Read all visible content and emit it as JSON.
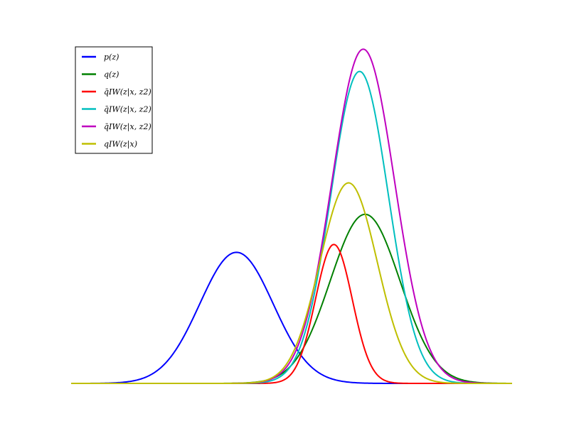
{
  "chart_data": {
    "type": "line",
    "title": "",
    "xlabel": "",
    "ylabel": "",
    "xlim": [
      -6,
      6
    ],
    "ylim": [
      0,
      1.3
    ],
    "grid": false,
    "axes_visible": false,
    "legend_position": "top-left",
    "series": [
      {
        "name": "p(z)",
        "color": "#0000ff",
        "mean": -1.5,
        "std": 1.0,
        "peak": 0.5
      },
      {
        "name": "q(z)",
        "color": "#008000",
        "mean": 2.0,
        "std": 0.95,
        "peak": 0.645
      },
      {
        "name": "q̄IW(z|x, z2)",
        "color": "#ff0000",
        "mean": 1.15,
        "std": 0.5,
        "peak": 0.53
      },
      {
        "name": "q̄IW(z|x, z2)",
        "color": "#00bfbf",
        "mean": 1.85,
        "std": 0.78,
        "peak": 1.19
      },
      {
        "name": "q̄IW(z|x, z2)",
        "color": "#bf00bf",
        "mean": 1.95,
        "std": 0.85,
        "peak": 1.275
      },
      {
        "name": "qIW(z|x)",
        "color": "#bfbf00",
        "mean": 1.55,
        "std": 0.78,
        "peak": 0.765
      }
    ]
  }
}
